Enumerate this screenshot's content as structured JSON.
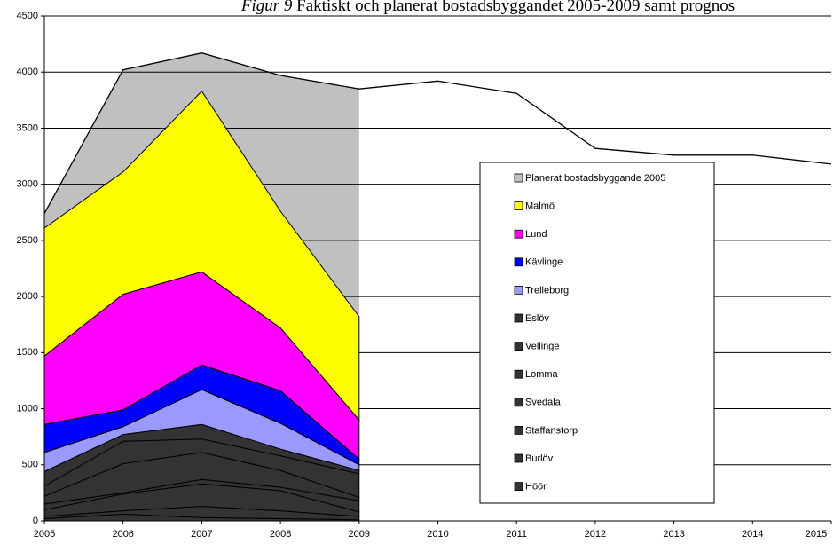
{
  "chart_data": {
    "type": "stacked_area",
    "title_prefix": "Figur 9",
    "title": "Faktiskt och planerat bostadsbyggandet 2005-2009 samt prognos",
    "x": [
      2005,
      2006,
      2007,
      2008,
      2009,
      2010,
      2011,
      2012,
      2013,
      2014,
      2015
    ],
    "xlim": [
      2005,
      2015
    ],
    "xticks": [
      2005,
      2006,
      2007,
      2008,
      2009,
      2010,
      2011,
      2012,
      2013,
      2014,
      2015
    ],
    "ylim": [
      0,
      4500
    ],
    "yticks": [
      0,
      500,
      1000,
      1500,
      2000,
      2500,
      3000,
      3500,
      4000,
      4500
    ],
    "grid": true,
    "overlay": {
      "name": "Planerat bostadsbyggande 2005",
      "color": "#c0c0c0",
      "values": [
        2740,
        4020,
        4170,
        3970,
        3850,
        3920,
        3810,
        3320,
        3260,
        3260,
        3180
      ]
    },
    "series": [
      {
        "name": "Malmö",
        "color": "#ffff00",
        "values": [
          1140,
          1090,
          1610,
          1040,
          920,
          null,
          null,
          null,
          null,
          null,
          null
        ]
      },
      {
        "name": "Lund",
        "color": "#ff00ff",
        "values": [
          610,
          1030,
          830,
          560,
          350,
          null,
          null,
          null,
          null,
          null,
          null
        ]
      },
      {
        "name": "Kävlinge",
        "color": "#0000ff",
        "values": [
          250,
          150,
          220,
          290,
          50,
          null,
          null,
          null,
          null,
          null,
          null
        ]
      },
      {
        "name": "Trelleborg",
        "color": "#9999ff",
        "values": [
          170,
          70,
          310,
          230,
          50,
          null,
          null,
          null,
          null,
          null,
          null
        ]
      },
      {
        "name": "Eslöv",
        "color": "#333333",
        "values": [
          130,
          60,
          130,
          60,
          30,
          null,
          null,
          null,
          null,
          null,
          null
        ]
      },
      {
        "name": "Vellinge",
        "color": "#333333",
        "values": [
          90,
          200,
          120,
          130,
          210,
          null,
          null,
          null,
          null,
          null,
          null
        ]
      },
      {
        "name": "Lomma",
        "color": "#333333",
        "values": [
          70,
          260,
          240,
          150,
          30,
          null,
          null,
          null,
          null,
          null,
          null
        ]
      },
      {
        "name": "Svedala",
        "color": "#333333",
        "values": [
          50,
          10,
          40,
          30,
          100,
          null,
          null,
          null,
          null,
          null,
          null
        ]
      },
      {
        "name": "Staffanstorp",
        "color": "#333333",
        "values": [
          60,
          150,
          200,
          180,
          40,
          null,
          null,
          null,
          null,
          null,
          null
        ]
      },
      {
        "name": "Burlöv",
        "color": "#333333",
        "values": [
          20,
          30,
          100,
          70,
          30,
          null,
          null,
          null,
          null,
          null,
          null
        ]
      },
      {
        "name": "Höör",
        "color": "#333333",
        "values": [
          20,
          60,
          30,
          20,
          10,
          null,
          null,
          null,
          null,
          null,
          null
        ]
      }
    ]
  }
}
